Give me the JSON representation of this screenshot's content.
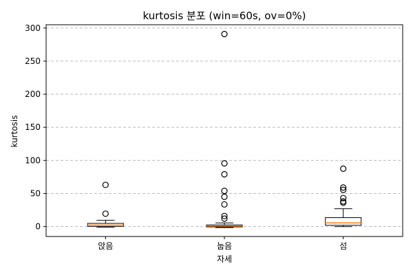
{
  "chart_data": {
    "type": "box",
    "title": "kurtosis 분포 (win=60s, ov=0%)",
    "xlabel": "자세",
    "ylabel": "kurtosis",
    "categories": [
      "앉음",
      "눕음",
      "섬"
    ],
    "ylim": [
      -15,
      305
    ],
    "yticks": [
      0,
      50,
      100,
      150,
      200,
      250,
      300
    ],
    "grid": "y-dashed",
    "box_fill": "#ffffff",
    "median_color": "#ff7f0e",
    "boxes": [
      {
        "category": "앉음",
        "whisker_low": -0.8,
        "q1": 0.2,
        "median": 2.2,
        "q3": 4.8,
        "whisker_high": 9.5,
        "outliers": [
          63,
          19.5
        ]
      },
      {
        "category": "눕음",
        "whisker_low": -1.5,
        "q1": -0.5,
        "median": 0.8,
        "q3": 2.5,
        "whisker_high": 5.5,
        "outliers": [
          291,
          95.5,
          79,
          54,
          45,
          33.5,
          16,
          12
        ]
      },
      {
        "category": "섬",
        "whisker_low": 0,
        "q1": 2,
        "median": 5.5,
        "q3": 13.5,
        "whisker_high": 27,
        "outliers": [
          87.5,
          59,
          55.5,
          43,
          38,
          36
        ]
      }
    ]
  }
}
